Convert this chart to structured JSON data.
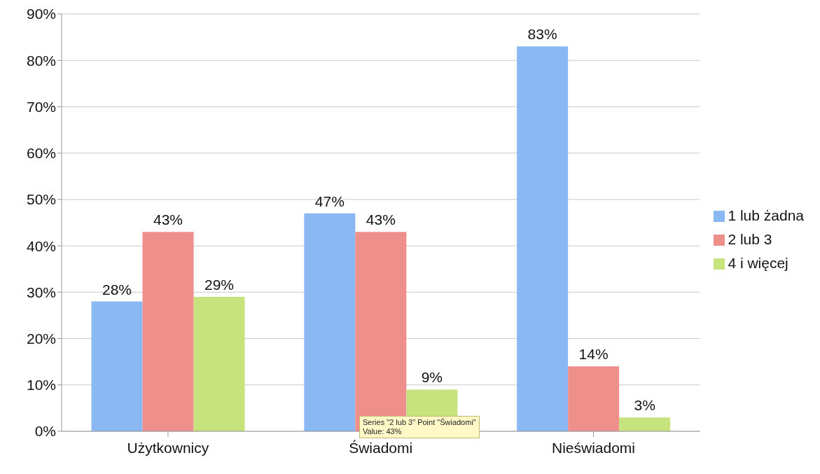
{
  "chart_data": {
    "type": "bar",
    "categories": [
      "Użytkownicy",
      "Świadomi",
      "Nieświadomi"
    ],
    "series": [
      {
        "name": "1 lub żadna",
        "color": "#8ab8f3",
        "values": [
          28,
          47,
          83
        ],
        "value_labels": [
          "28%",
          "47%",
          "83%"
        ]
      },
      {
        "name": "2 lub 3",
        "color": "#ef8f8c",
        "values": [
          43,
          43,
          14
        ],
        "value_labels": [
          "43%",
          "43%",
          "14%"
        ]
      },
      {
        "name": "4 i więcej",
        "color": "#c6e37e",
        "values": [
          29,
          9,
          3
        ],
        "value_labels": [
          "29%",
          "9%",
          "3%"
        ]
      }
    ],
    "ylim": [
      0,
      90
    ],
    "yticks": [
      {
        "value": 0,
        "label": "0%"
      },
      {
        "value": 10,
        "label": "10%"
      },
      {
        "value": 20,
        "label": "20%"
      },
      {
        "value": 30,
        "label": "30%"
      },
      {
        "value": 40,
        "label": "40%"
      },
      {
        "value": 50,
        "label": "50%"
      },
      {
        "value": 60,
        "label": "60%"
      },
      {
        "value": 70,
        "label": "70%"
      },
      {
        "value": 80,
        "label": "80%"
      },
      {
        "value": 90,
        "label": "90%"
      }
    ],
    "grid": "y",
    "legend": "right",
    "annotations": [
      "Series \"2 lub 3\" Point \"Świadomi\"\nValue: 43%"
    ]
  }
}
